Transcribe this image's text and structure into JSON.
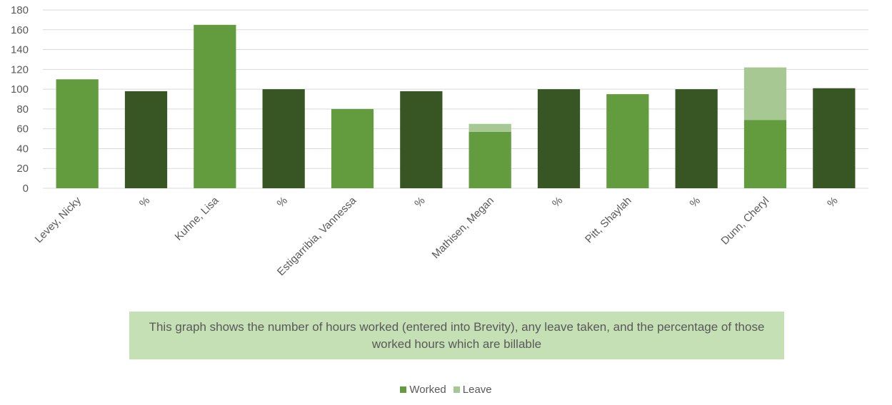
{
  "chart_data": {
    "type": "bar",
    "stacked": true,
    "categories": [
      "Levey, Nicky",
      "%",
      "Kuhne, Lisa",
      "%",
      "Estigarribia, Vannessa",
      "%",
      "Mathisen, Megan",
      "%",
      "Pitt, Shaylah",
      "%",
      "Dunn, Cheryl",
      "%"
    ],
    "series": [
      {
        "name": "Worked",
        "color": "#629c3e",
        "values": [
          110,
          null,
          165,
          null,
          80,
          null,
          57,
          null,
          95,
          null,
          69,
          null
        ]
      },
      {
        "name": "Leave",
        "color": "#a7c793",
        "values": [
          0,
          null,
          0,
          null,
          0,
          null,
          8,
          null,
          0,
          null,
          53,
          null
        ]
      },
      {
        "color": "#375623",
        "values": [
          null,
          98,
          null,
          100,
          null,
          98,
          null,
          100,
          null,
          100,
          null,
          101
        ]
      }
    ],
    "ylim": [
      0,
      180
    ],
    "yticks": [
      0,
      20,
      40,
      60,
      80,
      100,
      120,
      140,
      160,
      180
    ],
    "grid": true,
    "legend_position": "bottom",
    "annotation": "This graph shows the number of hours worked (entered into Brevity), any leave taken, and the percentage of those worked hours which are billable"
  },
  "legend": [
    {
      "label": "Worked",
      "color": "#629c3e"
    },
    {
      "label": "Leave",
      "color": "#a7c793"
    }
  ]
}
